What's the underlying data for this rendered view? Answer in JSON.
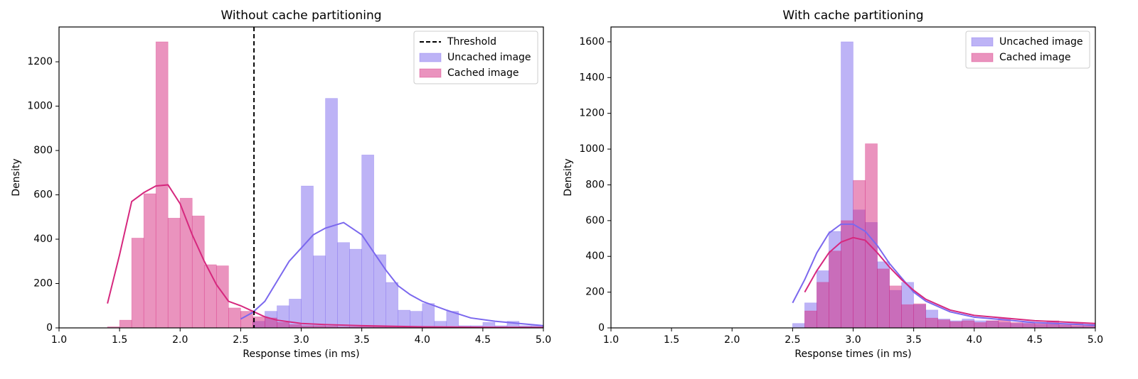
{
  "chart_data": [
    {
      "type": "histogram",
      "title": "Without cache partitioning",
      "xlabel": "Response times (in ms)",
      "ylabel": "Density",
      "xlim": [
        1.0,
        5.0
      ],
      "ylim": [
        0,
        1357
      ],
      "xticks": [
        {
          "value": 1.0,
          "label": "1.0"
        },
        1.5,
        {
          "value": 2.0,
          "label": "2.0"
        },
        2.5,
        {
          "value": 3.0,
          "label": "3.0"
        },
        3.5,
        {
          "value": 4.0,
          "label": "4.0"
        },
        4.5,
        {
          "value": 5.0,
          "label": "5.0"
        }
      ],
      "yticks": [
        0,
        200,
        400,
        600,
        800,
        1000,
        1200
      ],
      "legend": "upper right",
      "threshold": {
        "name": "Threshold",
        "value": 2.61,
        "color": "#000000"
      },
      "series": [
        {
          "name": "Uncached image",
          "color": "#7b68ee",
          "bins": [
            2.6,
            2.7,
            2.8,
            2.9,
            3.0,
            3.1,
            3.2,
            3.3,
            3.4,
            3.5,
            3.6,
            3.7,
            3.8,
            3.9,
            4.0,
            4.1,
            4.2,
            4.3,
            4.4,
            4.5,
            4.6,
            4.7,
            4.8,
            4.9,
            5.0
          ],
          "values": [
            30,
            75,
            100,
            130,
            640,
            325,
            1035,
            385,
            355,
            780,
            330,
            205,
            80,
            75,
            110,
            30,
            75,
            10,
            10,
            25,
            10,
            30,
            10,
            10
          ],
          "kde": {
            "x": [
              2.5,
              2.6,
              2.7,
              2.8,
              2.9,
              3.0,
              3.1,
              3.2,
              3.35,
              3.5,
              3.6,
              3.7,
              3.8,
              3.9,
              4.0,
              4.2,
              4.4,
              4.6,
              4.8,
              5.0
            ],
            "y": [
              40,
              70,
              120,
              210,
              300,
              360,
              420,
              450,
              475,
              420,
              340,
              260,
              190,
              150,
              120,
              80,
              45,
              30,
              20,
              10
            ]
          }
        },
        {
          "name": "Cached image",
          "color": "#d6287e",
          "bins": [
            1.4,
            1.5,
            1.6,
            1.7,
            1.8,
            1.9,
            2.0,
            2.1,
            2.2,
            2.3,
            2.4,
            2.5,
            2.6,
            2.7,
            2.8,
            2.9,
            3.0,
            3.1,
            3.2,
            3.3,
            3.4,
            3.5,
            3.6,
            3.7,
            3.8,
            3.9,
            4.0,
            4.1,
            4.2,
            4.3,
            4.4,
            4.5,
            4.6,
            4.7,
            4.8,
            4.9,
            5.0
          ],
          "values": [
            5,
            35,
            405,
            605,
            1290,
            495,
            585,
            505,
            285,
            280,
            90,
            75,
            50,
            45,
            25,
            15,
            10,
            10,
            8,
            5,
            5,
            5,
            5,
            5,
            3,
            3,
            3,
            3,
            3,
            3,
            3,
            3,
            3,
            3,
            3,
            3
          ],
          "kde": {
            "x": [
              1.4,
              1.5,
              1.6,
              1.7,
              1.8,
              1.9,
              2.0,
              2.1,
              2.2,
              2.3,
              2.4,
              2.5,
              2.6,
              2.7,
              2.8,
              3.0,
              3.2,
              3.5,
              4.0,
              4.5,
              5.0
            ],
            "y": [
              110,
              330,
              570,
              610,
              640,
              645,
              560,
              420,
              300,
              195,
              120,
              100,
              75,
              50,
              35,
              20,
              15,
              10,
              5,
              3,
              2
            ]
          }
        }
      ]
    },
    {
      "type": "histogram",
      "title": "With cache partitioning",
      "xlabel": "Response times (in ms)",
      "ylabel": "Density",
      "xlim": [
        1.0,
        5.0
      ],
      "ylim": [
        0,
        1683
      ],
      "xticks": [
        {
          "value": 1.0,
          "label": "1.0"
        },
        1.5,
        {
          "value": 2.0,
          "label": "2.0"
        },
        2.5,
        {
          "value": 3.0,
          "label": "3.0"
        },
        3.5,
        {
          "value": 4.0,
          "label": "4.0"
        },
        4.5,
        {
          "value": 5.0,
          "label": "5.0"
        }
      ],
      "yticks": [
        0,
        200,
        400,
        600,
        800,
        1000,
        1200,
        1400,
        1600
      ],
      "legend": "upper right",
      "series": [
        {
          "name": "Uncached image",
          "color": "#7b68ee",
          "bins": [
            2.5,
            2.6,
            2.7,
            2.8,
            2.9,
            3.0,
            3.1,
            3.2,
            3.3,
            3.4,
            3.5,
            3.6,
            3.7,
            3.8,
            3.9,
            4.0,
            4.1,
            4.2,
            4.3,
            4.4,
            4.5,
            4.6,
            4.7,
            4.8,
            4.9,
            5.0
          ],
          "values": [
            25,
            140,
            320,
            540,
            1600,
            660,
            590,
            370,
            210,
            255,
            130,
            100,
            50,
            40,
            50,
            40,
            40,
            30,
            25,
            30,
            20,
            20,
            15,
            10,
            10
          ],
          "kde": {
            "x": [
              2.5,
              2.6,
              2.7,
              2.8,
              2.9,
              3.0,
              3.1,
              3.2,
              3.3,
              3.4,
              3.5,
              3.6,
              3.8,
              4.0,
              4.5,
              5.0
            ],
            "y": [
              140,
              270,
              420,
              530,
              580,
              580,
              540,
              460,
              360,
              280,
              200,
              150,
              90,
              60,
              30,
              15
            ]
          }
        },
        {
          "name": "Cached image",
          "color": "#d6287e",
          "bins": [
            2.6,
            2.7,
            2.8,
            2.9,
            3.0,
            3.1,
            3.2,
            3.3,
            3.4,
            3.5,
            3.6,
            3.7,
            3.8,
            3.9,
            4.0,
            4.1,
            4.2,
            4.3,
            4.4,
            4.5,
            4.6,
            4.7,
            4.8,
            4.9,
            5.0
          ],
          "values": [
            95,
            255,
            430,
            600,
            825,
            1030,
            330,
            235,
            130,
            135,
            55,
            45,
            35,
            40,
            30,
            40,
            55,
            30,
            25,
            30,
            40,
            25,
            25,
            20
          ],
          "kde": {
            "x": [
              2.6,
              2.7,
              2.8,
              2.9,
              3.0,
              3.1,
              3.2,
              3.3,
              3.4,
              3.5,
              3.6,
              3.8,
              4.0,
              4.5,
              5.0
            ],
            "y": [
              200,
              320,
              420,
              480,
              505,
              490,
              420,
              340,
              270,
              210,
              160,
              100,
              70,
              40,
              25
            ]
          }
        }
      ]
    }
  ]
}
